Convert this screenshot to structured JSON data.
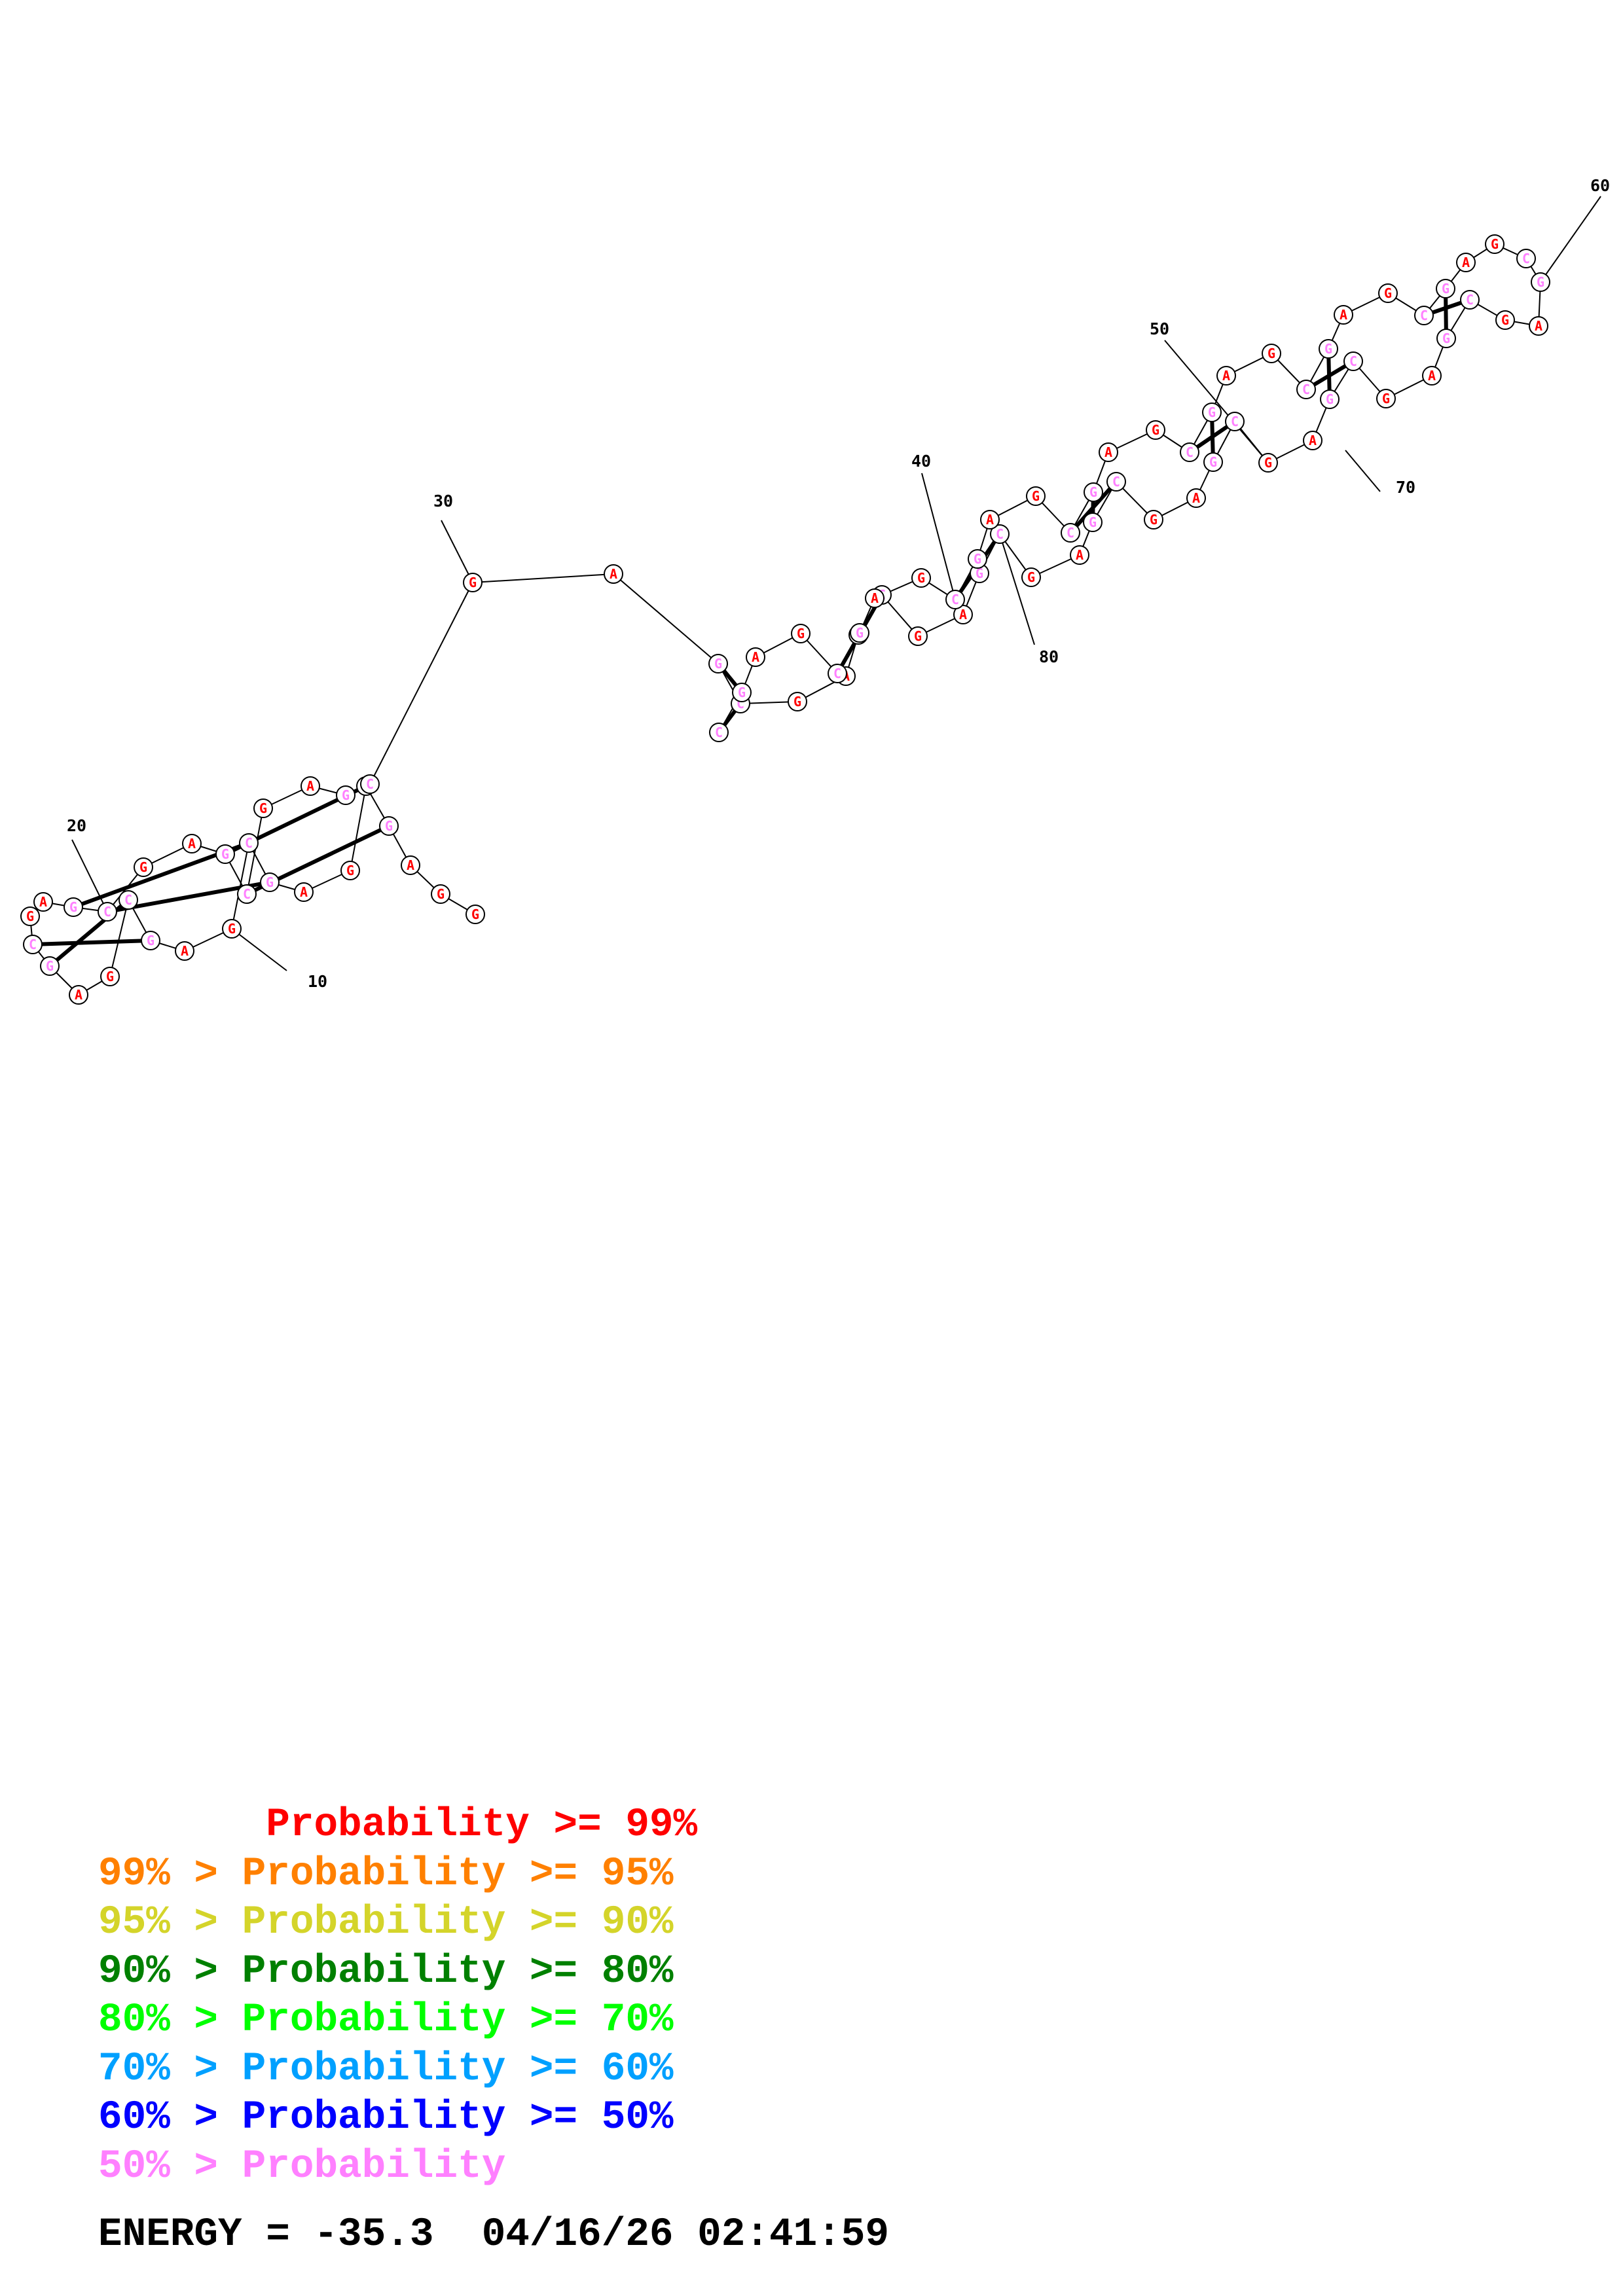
{
  "structure": {
    "nucleotides": [
      {
        "n": 1,
        "base": "G",
        "color": "#ff0000"
      },
      {
        "n": 2,
        "base": "G",
        "color": "#ff0000"
      },
      {
        "n": 3,
        "base": "A",
        "color": "#ff0000"
      },
      {
        "n": 4,
        "base": "G",
        "color": "#ff80ff"
      },
      {
        "n": 5,
        "base": "C",
        "color": "#ff80ff"
      },
      {
        "n": 6,
        "base": "G",
        "color": "#ff0000"
      },
      {
        "n": 7,
        "base": "A",
        "color": "#ff0000"
      },
      {
        "n": 8,
        "base": "G",
        "color": "#ff80ff"
      },
      {
        "n": 9,
        "base": "C",
        "color": "#ff80ff"
      },
      {
        "n": 10,
        "base": "G",
        "color": "#ff0000"
      },
      {
        "n": 11,
        "base": "A",
        "color": "#ff0000"
      },
      {
        "n": 12,
        "base": "G",
        "color": "#ff80ff"
      },
      {
        "n": 13,
        "base": "C",
        "color": "#ff80ff"
      },
      {
        "n": 14,
        "base": "G",
        "color": "#ff0000"
      },
      {
        "n": 15,
        "base": "A",
        "color": "#ff0000"
      },
      {
        "n": 16,
        "base": "G",
        "color": "#ff80ff"
      },
      {
        "n": 17,
        "base": "C",
        "color": "#ff80ff"
      },
      {
        "n": 18,
        "base": "G",
        "color": "#ff0000"
      },
      {
        "n": 19,
        "base": "A",
        "color": "#ff0000"
      },
      {
        "n": 20,
        "base": "G",
        "color": "#ff80ff"
      },
      {
        "n": 21,
        "base": "C",
        "color": "#ff80ff"
      },
      {
        "n": 22,
        "base": "G",
        "color": "#ff0000"
      },
      {
        "n": 23,
        "base": "A",
        "color": "#ff0000"
      },
      {
        "n": 24,
        "base": "G",
        "color": "#ff80ff"
      },
      {
        "n": 25,
        "base": "C",
        "color": "#ff80ff"
      },
      {
        "n": 26,
        "base": "G",
        "color": "#ff0000"
      },
      {
        "n": 27,
        "base": "A",
        "color": "#ff0000"
      },
      {
        "n": 28,
        "base": "G",
        "color": "#ff80ff"
      },
      {
        "n": 29,
        "base": "C",
        "color": "#ff80ff"
      },
      {
        "n": 30,
        "base": "G",
        "color": "#ff0000"
      },
      {
        "n": 31,
        "base": "A",
        "color": "#ff0000"
      },
      {
        "n": 32,
        "base": "G",
        "color": "#ff80ff"
      },
      {
        "n": 33,
        "base": "C",
        "color": "#ff80ff"
      },
      {
        "n": 34,
        "base": "G",
        "color": "#ff0000"
      },
      {
        "n": 35,
        "base": "A",
        "color": "#ff0000"
      },
      {
        "n": 36,
        "base": "G",
        "color": "#ff80ff"
      },
      {
        "n": 37,
        "base": "C",
        "color": "#ff80ff"
      },
      {
        "n": 38,
        "base": "G",
        "color": "#ff0000"
      },
      {
        "n": 39,
        "base": "A",
        "color": "#ff0000"
      },
      {
        "n": 40,
        "base": "G",
        "color": "#ff80ff"
      },
      {
        "n": 41,
        "base": "C",
        "color": "#ff80ff"
      },
      {
        "n": 42,
        "base": "G",
        "color": "#ff0000"
      },
      {
        "n": 43,
        "base": "A",
        "color": "#ff0000"
      },
      {
        "n": 44,
        "base": "G",
        "color": "#ff80ff"
      },
      {
        "n": 45,
        "base": "C",
        "color": "#ff80ff"
      },
      {
        "n": 46,
        "base": "G",
        "color": "#ff0000"
      },
      {
        "n": 47,
        "base": "A",
        "color": "#ff0000"
      },
      {
        "n": 48,
        "base": "G",
        "color": "#ff80ff"
      },
      {
        "n": 49,
        "base": "C",
        "color": "#ff80ff"
      },
      {
        "n": 50,
        "base": "G",
        "color": "#ff0000"
      },
      {
        "n": 51,
        "base": "A",
        "color": "#ff0000"
      },
      {
        "n": 52,
        "base": "G",
        "color": "#ff80ff"
      },
      {
        "n": 53,
        "base": "C",
        "color": "#ff80ff"
      },
      {
        "n": 54,
        "base": "G",
        "color": "#ff0000"
      },
      {
        "n": 55,
        "base": "A",
        "color": "#ff0000"
      },
      {
        "n": 56,
        "base": "G",
        "color": "#ff80ff"
      },
      {
        "n": 57,
        "base": "C",
        "color": "#ff80ff"
      },
      {
        "n": 58,
        "base": "G",
        "color": "#ff0000"
      },
      {
        "n": 59,
        "base": "A",
        "color": "#ff0000"
      },
      {
        "n": 60,
        "base": "G",
        "color": "#ff80ff"
      },
      {
        "n": 61,
        "base": "C",
        "color": "#ff80ff"
      },
      {
        "n": 62,
        "base": "G",
        "color": "#ff0000"
      },
      {
        "n": 63,
        "base": "A",
        "color": "#ff0000"
      },
      {
        "n": 64,
        "base": "G",
        "color": "#ff80ff"
      },
      {
        "n": 65,
        "base": "C",
        "color": "#ff80ff"
      },
      {
        "n": 66,
        "base": "G",
        "color": "#ff0000"
      },
      {
        "n": 67,
        "base": "A",
        "color": "#ff0000"
      },
      {
        "n": 68,
        "base": "G",
        "color": "#ff80ff"
      },
      {
        "n": 69,
        "base": "C",
        "color": "#ff80ff"
      },
      {
        "n": 70,
        "base": "G",
        "color": "#ff0000"
      },
      {
        "n": 71,
        "base": "A",
        "color": "#ff0000"
      },
      {
        "n": 72,
        "base": "G",
        "color": "#ff80ff"
      },
      {
        "n": 73,
        "base": "C",
        "color": "#ff80ff"
      },
      {
        "n": 74,
        "base": "G",
        "color": "#ff0000"
      },
      {
        "n": 75,
        "base": "A",
        "color": "#ff0000"
      },
      {
        "n": 76,
        "base": "G",
        "color": "#ff80ff"
      },
      {
        "n": 77,
        "base": "C",
        "color": "#ff80ff"
      },
      {
        "n": 78,
        "base": "G",
        "color": "#ff0000"
      },
      {
        "n": 79,
        "base": "A",
        "color": "#ff0000"
      },
      {
        "n": 80,
        "base": "G",
        "color": "#ff80ff"
      },
      {
        "n": 81,
        "base": "C",
        "color": "#ff80ff"
      },
      {
        "n": 82,
        "base": "G",
        "color": "#ff0000"
      },
      {
        "n": 83,
        "base": "A",
        "color": "#ff0000"
      },
      {
        "n": 84,
        "base": "G",
        "color": "#ff80ff"
      },
      {
        "n": 85,
        "base": "C",
        "color": "#ff80ff"
      },
      {
        "n": 86,
        "base": "G",
        "color": "#ff0000"
      },
      {
        "n": 87,
        "base": "A",
        "color": "#ff0000"
      },
      {
        "n": 88,
        "base": "G",
        "color": "#ff80ff"
      },
      {
        "n": 89,
        "base": "C",
        "color": "#ff80ff"
      }
    ],
    "base_pairs": [
      [
        4,
        25
      ],
      [
        5,
        24
      ],
      [
        8,
        21
      ],
      [
        9,
        20
      ],
      [
        12,
        17
      ],
      [
        13,
        16
      ],
      [
        33,
        89
      ],
      [
        32,
        88
      ],
      [
        37,
        85
      ],
      [
        36,
        84
      ],
      [
        41,
        81
      ],
      [
        40,
        80
      ],
      [
        45,
        77
      ],
      [
        44,
        76
      ],
      [
        49,
        73
      ],
      [
        48,
        72
      ],
      [
        53,
        69
      ],
      [
        52,
        68
      ],
      [
        57,
        65
      ],
      [
        56,
        64
      ]
    ],
    "position_labels": [
      "10",
      "20",
      "30",
      "40",
      "50",
      "60",
      "70",
      "80"
    ]
  },
  "legend": [
    {
      "text": "       Probability >= 99%",
      "color": "#ff0000"
    },
    {
      "text": "99% > Probability >= 95%",
      "color": "#ff8000"
    },
    {
      "text": "95% > Probability >= 90%",
      "color": "#d4d42a"
    },
    {
      "text": "90% > Probability >= 80%",
      "color": "#008000"
    },
    {
      "text": "80% > Probability >= 70%",
      "color": "#00ff00"
    },
    {
      "text": "70% > Probability >= 60%",
      "color": "#00a0ff"
    },
    {
      "text": "60% > Probability >= 50%",
      "color": "#0000ff"
    },
    {
      "text": "50% > Probability",
      "color": "#ff80ff"
    }
  ],
  "energy": {
    "text": "ENERGY = -35.3  04/16/26 02:41:59"
  }
}
